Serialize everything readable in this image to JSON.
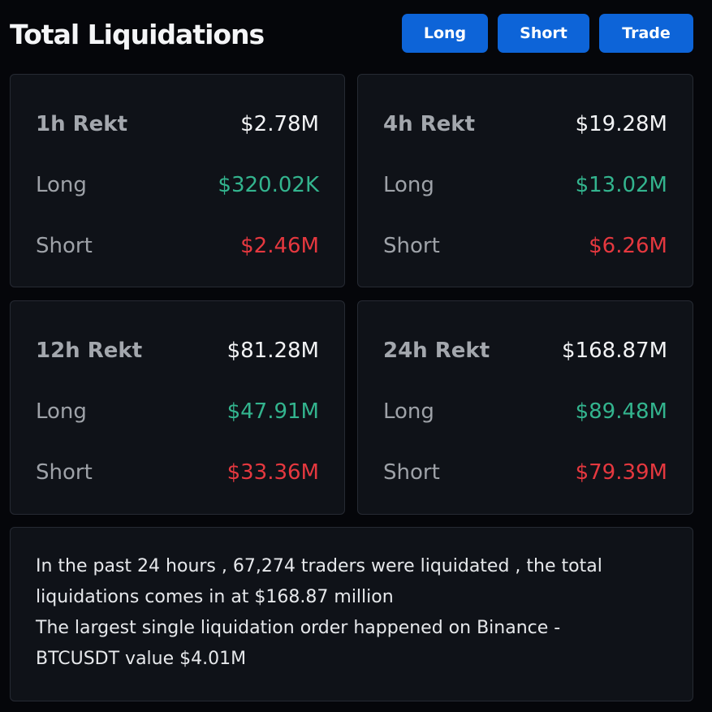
{
  "header": {
    "title": "Total Liquidations",
    "buttons": {
      "long": "Long",
      "short": "Short",
      "trade": "Trade"
    }
  },
  "colors": {
    "button_bg": "#0d64d8",
    "long": "#33b48e",
    "short": "#e5383f",
    "card_bg": "#0f1218",
    "page_bg": "#05060a"
  },
  "cards": [
    {
      "period_label": "1h Rekt",
      "total": "$2.78M",
      "long_label": "Long",
      "long_value": "$320.02K",
      "short_label": "Short",
      "short_value": "$2.46M"
    },
    {
      "period_label": "4h Rekt",
      "total": "$19.28M",
      "long_label": "Long",
      "long_value": "$13.02M",
      "short_label": "Short",
      "short_value": "$6.26M"
    },
    {
      "period_label": "12h Rekt",
      "total": "$81.28M",
      "long_label": "Long",
      "long_value": "$47.91M",
      "short_label": "Short",
      "short_value": "$33.36M"
    },
    {
      "period_label": "24h Rekt",
      "total": "$168.87M",
      "long_label": "Long",
      "long_value": "$89.48M",
      "short_label": "Short",
      "short_value": "$79.39M"
    }
  ],
  "summary": {
    "lines": [
      "In the past 24 hours , 67,274 traders were liquidated , the total",
      "liquidations comes in at $168.87 million",
      "The largest single liquidation order happened on Binance -",
      "BTCUSDT value $4.01M"
    ]
  }
}
